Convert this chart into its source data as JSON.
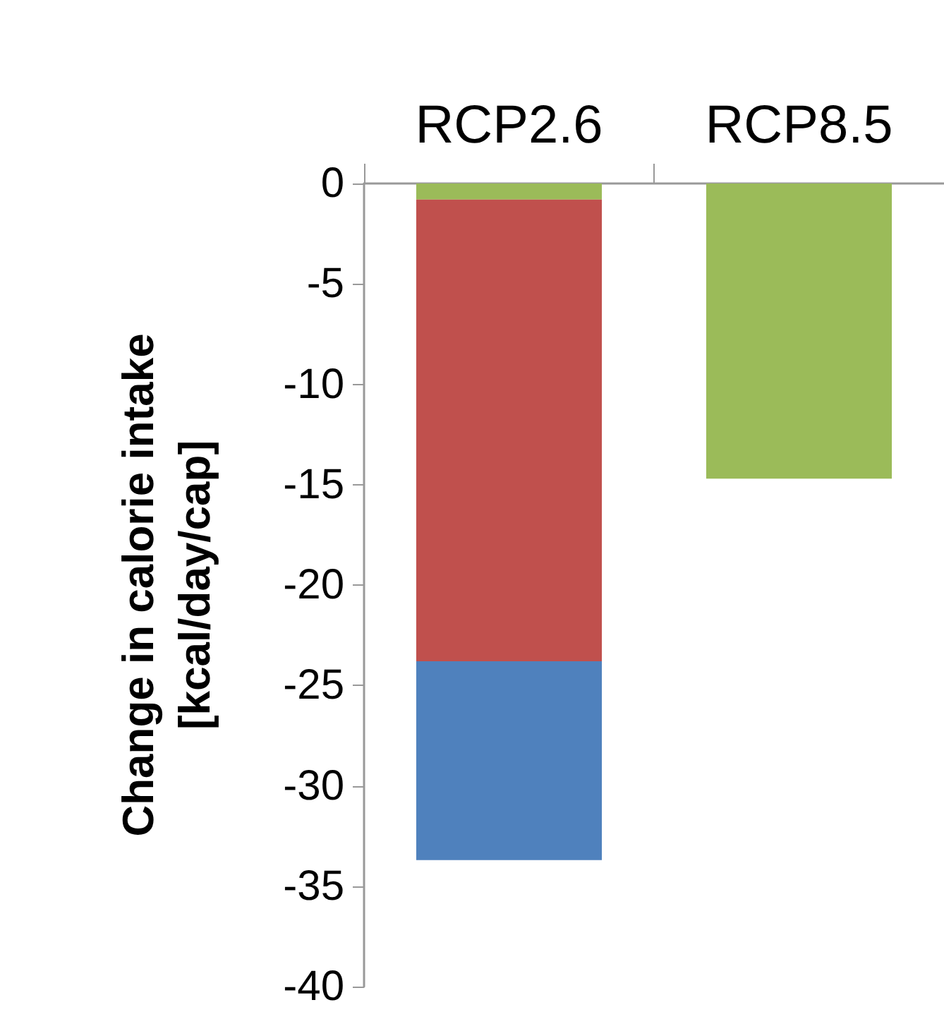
{
  "chart_data": {
    "type": "bar",
    "stacked": true,
    "ylabel": "Change in calorie intake\n[kcal/day/cap]",
    "categories": [
      "RCP2.6",
      "RCP8.5"
    ],
    "series": [
      {
        "color": "#9bbb59",
        "values": [
          -0.8,
          -14.7
        ]
      },
      {
        "color": "#c0504d",
        "values": [
          -23.0,
          null
        ]
      },
      {
        "color": "#4f81bd",
        "values": [
          -9.9,
          null
        ]
      }
    ],
    "ylim": [
      -40,
      0
    ],
    "yticks": [
      -40,
      -35,
      -30,
      -25,
      -20,
      -15,
      -10,
      -5,
      0
    ],
    "grid": false
  }
}
